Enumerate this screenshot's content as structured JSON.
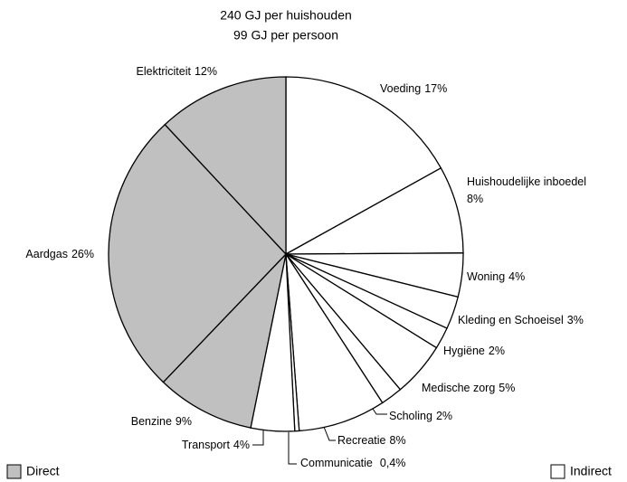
{
  "chart_data": {
    "type": "pie",
    "title": "240 GJ per huishouden",
    "subtitle": "99 GJ per persoon",
    "categories": [
      "Voeding",
      "Huishoudelijke inboedel",
      "Woning",
      "Kleding en Schoeisel",
      "Hygiëne",
      "Medische zorg",
      "Scholing",
      "Recreatie",
      "Communicatie",
      "Transport",
      "Benzine",
      "Aardgas",
      "Elektriciteit"
    ],
    "values": [
      17,
      8,
      4,
      3,
      2,
      5,
      2,
      8,
      0.4,
      4,
      9,
      26,
      12
    ],
    "value_labels": [
      "17%",
      "8%",
      "4%",
      "3%",
      "2%",
      "5%",
      "2%",
      "8%",
      "0,4%",
      "4%",
      "9%",
      "26%",
      "12%"
    ],
    "colors": [
      "#ffffff",
      "#ffffff",
      "#ffffff",
      "#ffffff",
      "#ffffff",
      "#ffffff",
      "#ffffff",
      "#ffffff",
      "#ffffff",
      "#ffffff",
      "#c0c0c0",
      "#c0c0c0",
      "#c0c0c0"
    ],
    "legend": [
      {
        "name": "Direct",
        "color": "#c0c0c0"
      },
      {
        "name": "Indirect",
        "color": "#ffffff"
      }
    ]
  }
}
